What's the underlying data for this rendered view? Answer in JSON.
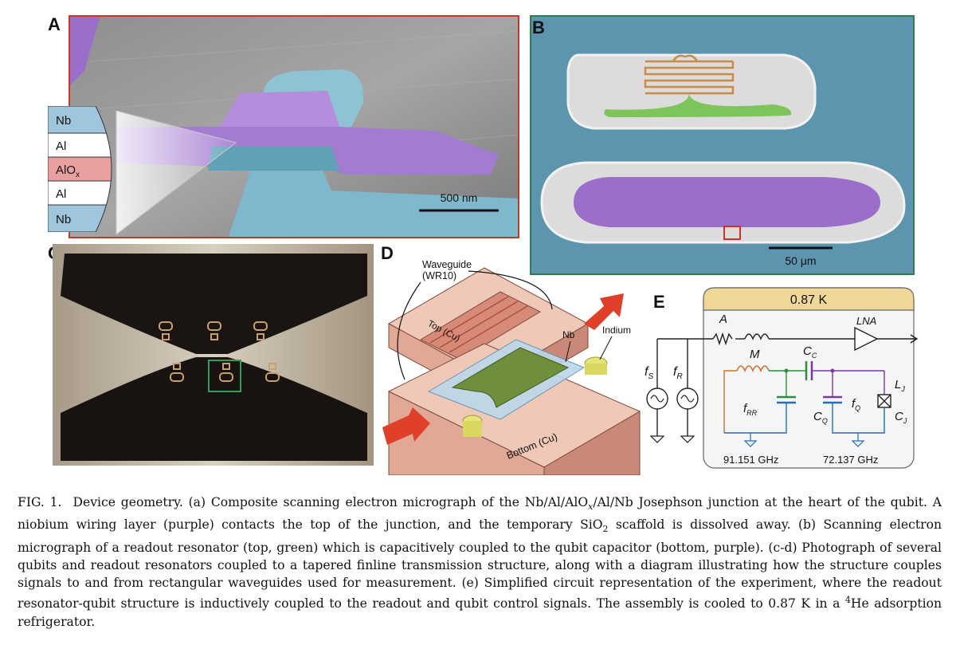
{
  "panels": {
    "a": {
      "label": "A",
      "layers": [
        "Nb",
        "Al",
        "AlOx",
        "Al",
        "Nb"
      ],
      "alox_main": "AlO",
      "alox_sub": "x",
      "scalebar": "500 nm"
    },
    "b": {
      "label": "B",
      "scalebar": "50 μm"
    },
    "c": {
      "label": "C"
    },
    "d": {
      "label": "D",
      "waveguide_line1": "Waveguide",
      "waveguide_line2": "(WR10)",
      "top": "Top (Cu)",
      "bottom": "Bottom (Cu)",
      "nb": "Nb",
      "indium": "Indium"
    },
    "e": {
      "label": "E",
      "temperature": "0.87 K",
      "A": "A",
      "LNA": "LNA",
      "M": "M",
      "Cc_main": "C",
      "Cc_sub": "C",
      "fS_main": "f",
      "fS_sub": "S",
      "fR_main": "f",
      "fR_sub": "R",
      "fRR_main": "f",
      "fRR_sub": "RR",
      "CQ_main": "C",
      "CQ_sub": "Q",
      "fQ_main": "f",
      "fQ_sub": "Q",
      "LJ_main": "L",
      "LJ_sub": "J",
      "CJ_main": "C",
      "CJ_sub": "J",
      "freq_rr": "91.151 GHz",
      "freq_q": "72.137 GHz"
    }
  },
  "caption": {
    "label": "FIG. 1.",
    "t1": "Device geometry. (a) Composite scanning electron micrograph of the Nb/Al/AlO",
    "t1_sub": "x",
    "t2": "/Al/Nb Josephson junction at the heart of the qubit. A niobium wiring layer (purple) contacts the top of the junction, and the temporary SiO",
    "t2_sub": "2",
    "t3": " scaffold is dissolved away. (b) Scanning electron micrograph of a readout resonator (top, green) which is capacitively coupled to the qubit capacitor (bottom, purple). (c-d) Photograph of several qubits and readout resonators coupled to a tapered finline transmission structure, along with a diagram illustrating how the structure couples signals to and from rectangular waveguides used for measurement. (e) Simplified circuit representation of the experiment, where the readout resonator-qubit structure is inductively coupled to the readout and qubit control signals. The assembly is cooled to 0.87 K in a ",
    "t3_sup": "4",
    "t4": "He adsorption refrigerator."
  },
  "colors": {
    "panel_a_border": "#c0392b",
    "panel_b_border": "#2e7d4f",
    "purple": "#9b6fc9",
    "cyan": "#7fb8cc",
    "green": "#7dc45a",
    "copper": "#e8b8a8"
  }
}
